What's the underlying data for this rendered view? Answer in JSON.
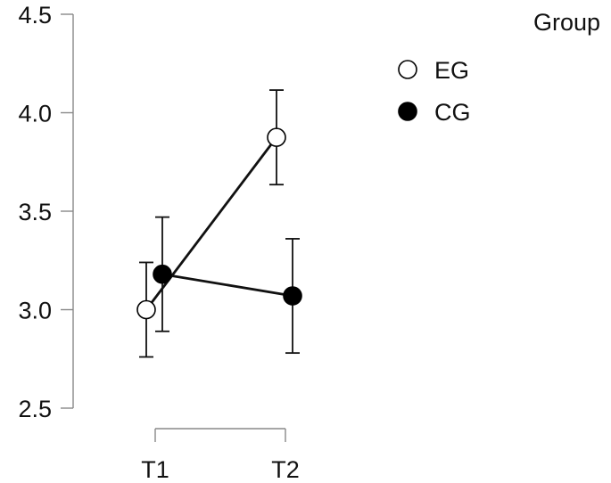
{
  "chart_data": {
    "type": "line",
    "title": "",
    "xlabel": "",
    "ylabel": "",
    "categories": [
      "T1",
      "T2"
    ],
    "ylim": [
      2.5,
      4.5
    ],
    "yticks": [
      "2.5",
      "3.0",
      "3.5",
      "4.0",
      "4.5"
    ],
    "grid": false,
    "legend": {
      "title": "Group",
      "position": "top-right"
    },
    "series": [
      {
        "name": "EG",
        "marker": "open-circle",
        "values": [
          3.0,
          3.875
        ],
        "error_low": [
          2.76,
          3.635
        ],
        "error_high": [
          3.24,
          4.115
        ]
      },
      {
        "name": "CG",
        "marker": "filled-circle",
        "values": [
          3.18,
          3.07
        ],
        "error_low": [
          2.89,
          2.78
        ],
        "error_high": [
          3.47,
          3.36
        ]
      }
    ],
    "colors": {
      "line": "#111111",
      "axis": "#888888",
      "open_fill": "#ffffff",
      "filled_fill": "#000000"
    }
  }
}
